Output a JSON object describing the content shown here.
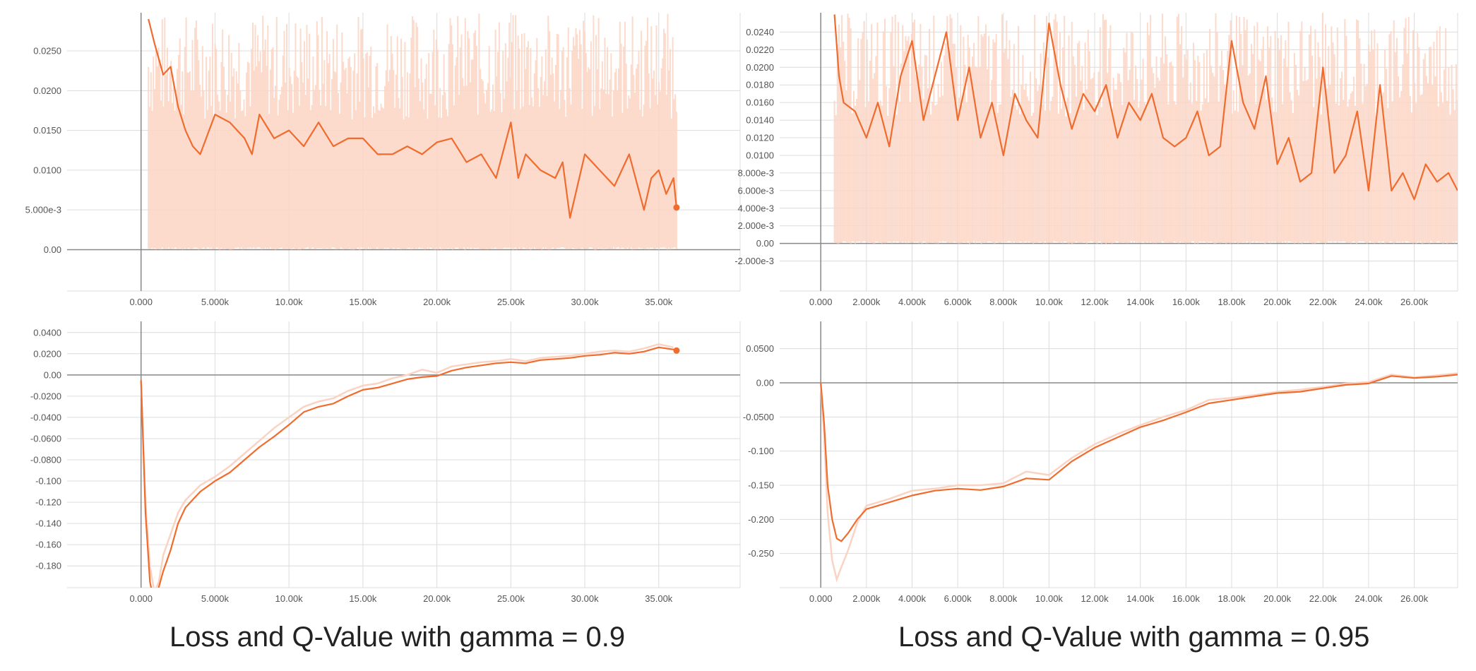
{
  "colors": {
    "line": "#f06c2e",
    "raw": "#fbd3c3",
    "grid": "#dcdcdc",
    "axis": "#888888",
    "tick_text": "#555555"
  },
  "captions": {
    "left": "Loss and Q-Value with gamma = 0.9",
    "right": "Loss and Q-Value with gamma = 0.95"
  },
  "chart_data": [
    {
      "id": "loss-gamma-0.9",
      "type": "line",
      "xlim": [
        -5000,
        40500
      ],
      "ylim": [
        -0.0052,
        0.0298
      ],
      "x_ticks": [
        0,
        5000,
        10000,
        15000,
        20000,
        25000,
        30000,
        35000
      ],
      "x_tick_labels": [
        "0.000",
        "5.000k",
        "10.00k",
        "15.00k",
        "20.00k",
        "25.00k",
        "30.00k",
        "35.00k"
      ],
      "y_ticks": [
        0,
        0.005,
        0.01,
        0.015,
        0.02,
        0.025
      ],
      "y_tick_labels": [
        "0.00",
        "5.000e-3",
        "0.0100",
        "0.0150",
        "0.0200",
        "0.0250"
      ],
      "raw_band": true,
      "end_marker": true,
      "series": [
        {
          "x": [
            500,
            900,
            1500,
            2000,
            2500,
            3000,
            3500,
            4000,
            5000,
            6000,
            7000,
            7500,
            8000,
            9000,
            10000,
            11000,
            12000,
            13000,
            14000,
            15000,
            16000,
            17000,
            18000,
            19000,
            20000,
            21000,
            22000,
            23000,
            24000,
            25000,
            25500,
            26000,
            27000,
            28000,
            28500,
            29000,
            30000,
            31000,
            32000,
            33000,
            34000,
            34500,
            35000,
            35500,
            36000,
            36200
          ],
          "y": [
            0.029,
            0.026,
            0.022,
            0.023,
            0.018,
            0.015,
            0.013,
            0.012,
            0.017,
            0.016,
            0.014,
            0.012,
            0.017,
            0.014,
            0.015,
            0.013,
            0.016,
            0.013,
            0.014,
            0.014,
            0.012,
            0.012,
            0.013,
            0.012,
            0.0135,
            0.014,
            0.011,
            0.012,
            0.009,
            0.016,
            0.009,
            0.012,
            0.01,
            0.009,
            0.011,
            0.004,
            0.012,
            0.01,
            0.008,
            0.012,
            0.005,
            0.009,
            0.01,
            0.007,
            0.009,
            0.0053
          ]
        }
      ]
    },
    {
      "id": "loss-gamma-0.95",
      "type": "line",
      "xlim": [
        -1800,
        27900
      ],
      "ylim": [
        -0.0054,
        0.0262
      ],
      "x_ticks": [
        0,
        2000,
        4000,
        6000,
        8000,
        10000,
        12000,
        14000,
        16000,
        18000,
        20000,
        22000,
        24000,
        26000
      ],
      "x_tick_labels": [
        "0.000",
        "2.000k",
        "4.000k",
        "6.000k",
        "8.000k",
        "10.00k",
        "12.00k",
        "14.00k",
        "16.00k",
        "18.00k",
        "20.00k",
        "22.00k",
        "24.00k",
        "26.00k"
      ],
      "y_ticks": [
        -0.002,
        0,
        0.002,
        0.004,
        0.006,
        0.008,
        0.01,
        0.012,
        0.014,
        0.016,
        0.018,
        0.02,
        0.022,
        0.024
      ],
      "y_tick_labels": [
        "-2.000e-3",
        "0.00",
        "2.000e-3",
        "4.000e-3",
        "6.000e-3",
        "8.000e-3",
        "0.0100",
        "0.0120",
        "0.0140",
        "0.0160",
        "0.0180",
        "0.0200",
        "0.0220",
        "0.0240"
      ],
      "raw_band": true,
      "end_marker": false,
      "series": [
        {
          "x": [
            600,
            800,
            1000,
            1500,
            2000,
            2500,
            3000,
            3500,
            4000,
            4500,
            5000,
            5500,
            6000,
            6500,
            7000,
            7500,
            8000,
            8500,
            9000,
            9500,
            10000,
            10500,
            11000,
            11500,
            12000,
            12500,
            13000,
            13500,
            14000,
            14500,
            15000,
            15500,
            16000,
            16500,
            17000,
            17500,
            18000,
            18500,
            19000,
            19500,
            20000,
            20500,
            21000,
            21500,
            22000,
            22500,
            23000,
            23500,
            24000,
            24500,
            25000,
            25500,
            26000,
            26500,
            27000,
            27500,
            27900
          ],
          "y": [
            0.026,
            0.019,
            0.016,
            0.015,
            0.012,
            0.016,
            0.011,
            0.019,
            0.023,
            0.014,
            0.019,
            0.024,
            0.014,
            0.02,
            0.012,
            0.016,
            0.01,
            0.017,
            0.014,
            0.012,
            0.025,
            0.018,
            0.013,
            0.017,
            0.015,
            0.018,
            0.012,
            0.016,
            0.014,
            0.017,
            0.012,
            0.011,
            0.012,
            0.015,
            0.01,
            0.011,
            0.023,
            0.016,
            0.013,
            0.019,
            0.009,
            0.012,
            0.007,
            0.008,
            0.02,
            0.008,
            0.01,
            0.015,
            0.006,
            0.018,
            0.006,
            0.008,
            0.005,
            0.009,
            0.007,
            0.008,
            0.006
          ]
        }
      ]
    },
    {
      "id": "qvalue-gamma-0.9",
      "type": "line",
      "xlim": [
        -5000,
        40500
      ],
      "ylim": [
        -0.2005,
        0.0505
      ],
      "x_ticks": [
        0,
        5000,
        10000,
        15000,
        20000,
        25000,
        30000,
        35000
      ],
      "x_tick_labels": [
        "0.000",
        "5.000k",
        "10.00k",
        "15.00k",
        "20.00k",
        "25.00k",
        "30.00k",
        "35.00k"
      ],
      "y_ticks": [
        -0.18,
        -0.16,
        -0.14,
        -0.12,
        -0.1,
        -0.08,
        -0.06,
        -0.04,
        -0.02,
        0,
        0.02,
        0.04
      ],
      "y_tick_labels": [
        "-0.180",
        "-0.160",
        "-0.140",
        "-0.120",
        "-0.100",
        "-0.0800",
        "-0.0600",
        "-0.0400",
        "-0.0200",
        "0.00",
        "0.0200",
        "0.0400"
      ],
      "raw_band": false,
      "end_marker": true,
      "series": [
        {
          "x": [
            0,
            300,
            600,
            900,
            1200,
            1500,
            2000,
            2500,
            3000,
            4000,
            5000,
            6000,
            7000,
            8000,
            9000,
            10000,
            11000,
            12000,
            13000,
            14000,
            15000,
            16000,
            17000,
            18000,
            19000,
            20000,
            21000,
            22000,
            23000,
            24000,
            25000,
            26000,
            27000,
            28000,
            29000,
            30000,
            31000,
            32000,
            33000,
            34000,
            35000,
            36000,
            36200
          ],
          "y": [
            -0.005,
            -0.13,
            -0.195,
            -0.215,
            -0.2,
            -0.185,
            -0.165,
            -0.14,
            -0.125,
            -0.11,
            -0.1,
            -0.092,
            -0.08,
            -0.068,
            -0.058,
            -0.047,
            -0.035,
            -0.03,
            -0.027,
            -0.02,
            -0.014,
            -0.012,
            -0.008,
            -0.004,
            -0.002,
            -0.001,
            0.004,
            0.007,
            0.009,
            0.011,
            0.012,
            0.011,
            0.014,
            0.015,
            0.016,
            0.018,
            0.019,
            0.021,
            0.02,
            0.022,
            0.026,
            0.024,
            0.023
          ]
        }
      ],
      "raw_series": [
        {
          "x": [
            0,
            300,
            600,
            900,
            1200,
            1500,
            2000,
            2500,
            3000,
            4000,
            5000,
            6000,
            7000,
            8000,
            9000,
            10000,
            11000,
            12000,
            13000,
            14000,
            15000,
            16000,
            17000,
            18000,
            19000,
            20000,
            21000,
            22000,
            23000,
            24000,
            25000,
            26000,
            27000,
            28000,
            29000,
            30000,
            31000,
            32000,
            33000,
            34000,
            35000,
            36000
          ],
          "y": [
            -0.005,
            -0.12,
            -0.18,
            -0.205,
            -0.195,
            -0.17,
            -0.15,
            -0.13,
            -0.118,
            -0.104,
            -0.096,
            -0.086,
            -0.074,
            -0.062,
            -0.05,
            -0.04,
            -0.03,
            -0.025,
            -0.022,
            -0.015,
            -0.01,
            -0.008,
            -0.003,
            0.0,
            0.005,
            0.002,
            0.008,
            0.01,
            0.012,
            0.013,
            0.015,
            0.013,
            0.016,
            0.017,
            0.018,
            0.02,
            0.022,
            0.023,
            0.022,
            0.025,
            0.029,
            0.026
          ]
        }
      ]
    },
    {
      "id": "qvalue-gamma-0.95",
      "type": "line",
      "xlim": [
        -1800,
        27900
      ],
      "ylim": [
        -0.3,
        0.09
      ],
      "x_ticks": [
        0,
        2000,
        4000,
        6000,
        8000,
        10000,
        12000,
        14000,
        16000,
        18000,
        20000,
        22000,
        24000,
        26000
      ],
      "x_tick_labels": [
        "0.000",
        "2.000k",
        "4.000k",
        "6.000k",
        "8.000k",
        "10.00k",
        "12.00k",
        "14.00k",
        "16.00k",
        "18.00k",
        "20.00k",
        "22.00k",
        "24.00k",
        "26.00k"
      ],
      "y_ticks": [
        -0.25,
        -0.2,
        -0.15,
        -0.1,
        -0.05,
        0,
        0.05
      ],
      "y_tick_labels": [
        "-0.250",
        "-0.200",
        "-0.150",
        "-0.100",
        "-0.0500",
        "0.00",
        "0.0500"
      ],
      "raw_band": false,
      "end_marker": false,
      "series": [
        {
          "x": [
            0,
            150,
            300,
            500,
            700,
            900,
            1200,
            1600,
            2000,
            3000,
            4000,
            5000,
            6000,
            7000,
            8000,
            9000,
            10000,
            11000,
            12000,
            13000,
            14000,
            15000,
            16000,
            17000,
            18000,
            19000,
            20000,
            21000,
            22000,
            23000,
            24000,
            25000,
            26000,
            27000,
            27900
          ],
          "y": [
            0.0,
            -0.06,
            -0.15,
            -0.2,
            -0.228,
            -0.232,
            -0.22,
            -0.2,
            -0.185,
            -0.175,
            -0.165,
            -0.158,
            -0.155,
            -0.157,
            -0.152,
            -0.14,
            -0.142,
            -0.115,
            -0.095,
            -0.08,
            -0.065,
            -0.055,
            -0.043,
            -0.03,
            -0.025,
            -0.02,
            -0.015,
            -0.013,
            -0.008,
            -0.003,
            -0.001,
            0.01,
            0.007,
            0.009,
            0.012
          ]
        }
      ],
      "raw_series": [
        {
          "x": [
            0,
            150,
            300,
            500,
            700,
            900,
            1200,
            1600,
            2000,
            3000,
            4000,
            5000,
            6000,
            7000,
            8000,
            9000,
            10000,
            11000,
            12000,
            13000,
            14000,
            15000,
            16000,
            17000,
            18000,
            19000,
            20000,
            21000,
            22000,
            23000,
            24000,
            25000,
            26000,
            27000,
            27900
          ],
          "y": [
            0.0,
            -0.08,
            -0.19,
            -0.26,
            -0.288,
            -0.27,
            -0.245,
            -0.205,
            -0.18,
            -0.17,
            -0.158,
            -0.155,
            -0.15,
            -0.15,
            -0.147,
            -0.13,
            -0.135,
            -0.11,
            -0.09,
            -0.075,
            -0.062,
            -0.05,
            -0.04,
            -0.025,
            -0.022,
            -0.018,
            -0.013,
            -0.01,
            -0.006,
            -0.001,
            0.001,
            0.012,
            0.008,
            0.011,
            0.014
          ]
        }
      ]
    }
  ]
}
